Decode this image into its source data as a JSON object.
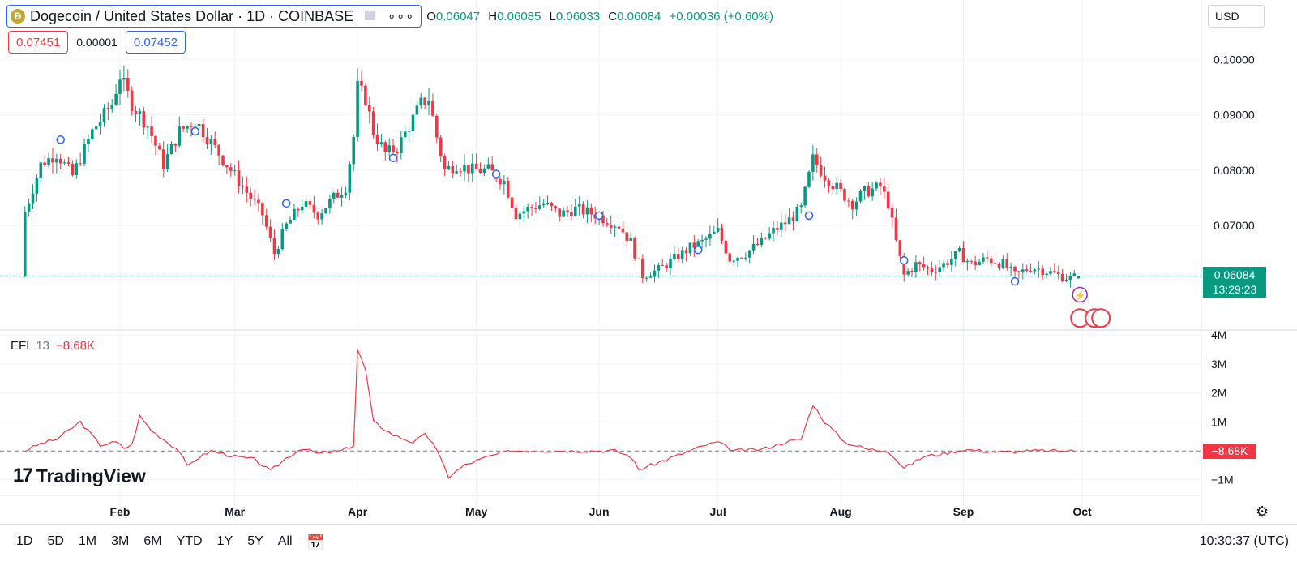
{
  "header": {
    "coin_letter": "Đ",
    "symbol_title": "Dogecoin / United States Dollar · 1D · COINBASE",
    "more_label": "∘∘∘",
    "ohlc": {
      "o_label": "O",
      "o": "0.06047",
      "h_label": "H",
      "h": "0.06085",
      "l_label": "L",
      "l": "0.06033",
      "c_label": "C",
      "c": "0.06084",
      "change": "+0.00036 (+0.60%)"
    },
    "sell_price": "0.07451",
    "spread": "0.00001",
    "buy_price": "0.07452",
    "currency": "USD"
  },
  "price_scale": {
    "last_price": "0.06084",
    "countdown": "13:29:23",
    "last_tag_color": "#089981"
  },
  "efi_pane": {
    "name": "EFI",
    "period": "13",
    "value": "−8.68K",
    "tag_value": "−8.68K",
    "line_color": "#f23645"
  },
  "branding": {
    "logo_mark": "17",
    "logo_text": "TradingView"
  },
  "toolbar": {
    "ranges": [
      "1D",
      "5D",
      "1M",
      "3M",
      "6M",
      "YTD",
      "1Y",
      "5Y",
      "All"
    ],
    "calendar_icon": "calendar-icon",
    "clock": "10:30:37 (UTC)",
    "settings_icon": "gear-icon"
  },
  "colors": {
    "up": "#089981",
    "down": "#f23645",
    "grid": "#f0f3fa"
  },
  "chart_data": [
    {
      "type": "candlestick",
      "title": "Dogecoin / United States Dollar · 1D · COINBASE",
      "x_ticks": [
        "Feb",
        "Mar",
        "Apr",
        "May",
        "Jun",
        "Jul",
        "Aug",
        "Sep",
        "Oct"
      ],
      "y_ticks": [
        "0.07000",
        "0.08000",
        "0.09000",
        "0.10000"
      ],
      "ylim": [
        0.054,
        0.104
      ],
      "grid": true,
      "anchor_closes": [
        [
          "2024-01-08",
          0.0725
        ],
        [
          "2024-01-12",
          0.081
        ],
        [
          "2024-01-16",
          0.083
        ],
        [
          "2024-01-20",
          0.079
        ],
        [
          "2024-01-25",
          0.087
        ],
        [
          "2024-01-30",
          0.092
        ],
        [
          "2024-02-01",
          0.097
        ],
        [
          "2024-02-04",
          0.092
        ],
        [
          "2024-02-08",
          0.088
        ],
        [
          "2024-02-12",
          0.081
        ],
        [
          "2024-02-16",
          0.087
        ],
        [
          "2024-02-20",
          0.089
        ],
        [
          "2024-02-24",
          0.085
        ],
        [
          "2024-02-28",
          0.081
        ],
        [
          "2024-03-04",
          0.076
        ],
        [
          "2024-03-08",
          0.072
        ],
        [
          "2024-03-11",
          0.065
        ],
        [
          "2024-03-14",
          0.07
        ],
        [
          "2024-03-18",
          0.074
        ],
        [
          "2024-03-22",
          0.072
        ],
        [
          "2024-03-26",
          0.075
        ],
        [
          "2024-03-29",
          0.077
        ],
        [
          "2024-03-31",
          0.086
        ],
        [
          "2024-04-01",
          0.095
        ],
        [
          "2024-04-03",
          0.093
        ],
        [
          "2024-04-05",
          0.087
        ],
        [
          "2024-04-08",
          0.083
        ],
        [
          "2024-04-11",
          0.084
        ],
        [
          "2024-04-14",
          0.088
        ],
        [
          "2024-04-17",
          0.092
        ],
        [
          "2024-04-19",
          0.093
        ],
        [
          "2024-04-21",
          0.086
        ],
        [
          "2024-04-23",
          0.08
        ],
        [
          "2024-04-26",
          0.081
        ],
        [
          "2024-04-30",
          0.08
        ],
        [
          "2024-05-04",
          0.08
        ],
        [
          "2024-05-08",
          0.078
        ],
        [
          "2024-05-11",
          0.072
        ],
        [
          "2024-05-14",
          0.073
        ],
        [
          "2024-05-18",
          0.074
        ],
        [
          "2024-05-22",
          0.072
        ],
        [
          "2024-05-26",
          0.073
        ],
        [
          "2024-05-31",
          0.072
        ],
        [
          "2024-06-03",
          0.071
        ],
        [
          "2024-06-06",
          0.07
        ],
        [
          "2024-06-09",
          0.067
        ],
        [
          "2024-06-12",
          0.061
        ],
        [
          "2024-06-16",
          0.062
        ],
        [
          "2024-06-20",
          0.064
        ],
        [
          "2024-06-24",
          0.066
        ],
        [
          "2024-06-27",
          0.067
        ],
        [
          "2024-07-01",
          0.069
        ],
        [
          "2024-07-04",
          0.064
        ],
        [
          "2024-07-08",
          0.065
        ],
        [
          "2024-07-12",
          0.067
        ],
        [
          "2024-07-15",
          0.069
        ],
        [
          "2024-07-19",
          0.071
        ],
        [
          "2024-07-22",
          0.073
        ],
        [
          "2024-07-25",
          0.082
        ],
        [
          "2024-07-28",
          0.079
        ],
        [
          "2024-08-01",
          0.076
        ],
        [
          "2024-08-04",
          0.074
        ],
        [
          "2024-08-07",
          0.076
        ],
        [
          "2024-08-11",
          0.077
        ],
        [
          "2024-08-13",
          0.074
        ],
        [
          "2024-08-15",
          0.067
        ],
        [
          "2024-08-17",
          0.061
        ],
        [
          "2024-08-20",
          0.063
        ],
        [
          "2024-08-24",
          0.062
        ],
        [
          "2024-08-27",
          0.063
        ],
        [
          "2024-08-31",
          0.065
        ],
        [
          "2024-09-03",
          0.063
        ],
        [
          "2024-09-07",
          0.064
        ],
        [
          "2024-09-11",
          0.063
        ],
        [
          "2024-09-14",
          0.061
        ],
        [
          "2024-09-18",
          0.0625
        ],
        [
          "2024-09-21",
          0.062
        ],
        [
          "2024-09-25",
          0.061
        ],
        [
          "2024-09-28",
          0.0605
        ],
        [
          "2024-09-30",
          0.0608
        ]
      ],
      "last": {
        "open": 0.06047,
        "high": 0.06085,
        "low": 0.06033,
        "close": 0.06084,
        "change": 0.00036,
        "change_pct": 0.6
      },
      "events": [
        [
          "2024-01-17",
          0.0855
        ],
        [
          "2024-02-20",
          0.087
        ],
        [
          "2024-03-14",
          0.074
        ],
        [
          "2024-04-10",
          0.0822
        ],
        [
          "2024-05-06",
          0.0793
        ],
        [
          "2024-06-01",
          0.0718
        ],
        [
          "2024-06-26",
          0.0656
        ],
        [
          "2024-07-24",
          0.0718
        ],
        [
          "2024-08-17",
          0.0637
        ],
        [
          "2024-09-14",
          0.0599
        ]
      ]
    },
    {
      "type": "line",
      "title": "EFI 13",
      "y_ticks": [
        "4M",
        "3M",
        "2M",
        "1M",
        "−1M"
      ],
      "ylim": [
        -1.3,
        4.1
      ],
      "baseline": -0.00868,
      "anchor_values": [
        [
          "2024-01-08",
          0.0
        ],
        [
          "2024-01-12",
          0.25
        ],
        [
          "2024-01-16",
          0.4
        ],
        [
          "2024-01-22",
          1.0
        ],
        [
          "2024-01-27",
          0.2
        ],
        [
          "2024-01-31",
          0.3
        ],
        [
          "2024-02-02",
          0.1
        ],
        [
          "2024-02-04",
          0.2
        ],
        [
          "2024-02-06",
          1.2
        ],
        [
          "2024-02-09",
          0.7
        ],
        [
          "2024-02-13",
          0.3
        ],
        [
          "2024-02-16",
          0.0
        ],
        [
          "2024-02-18",
          -0.55
        ],
        [
          "2024-02-20",
          -0.3
        ],
        [
          "2024-02-24",
          0.0
        ],
        [
          "2024-03-01",
          -0.2
        ],
        [
          "2024-03-06",
          -0.3
        ],
        [
          "2024-03-10",
          -0.7
        ],
        [
          "2024-03-14",
          -0.25
        ],
        [
          "2024-03-18",
          0.1
        ],
        [
          "2024-03-22",
          -0.1
        ],
        [
          "2024-03-28",
          0.0
        ],
        [
          "2024-03-31",
          0.2
        ],
        [
          "2024-04-01",
          3.5
        ],
        [
          "2024-04-03",
          2.8
        ],
        [
          "2024-04-05",
          1.0
        ],
        [
          "2024-04-10",
          0.55
        ],
        [
          "2024-04-15",
          0.3
        ],
        [
          "2024-04-18",
          0.55
        ],
        [
          "2024-04-20",
          0.3
        ],
        [
          "2024-04-24",
          -0.9
        ],
        [
          "2024-04-28",
          -0.5
        ],
        [
          "2024-05-04",
          -0.2
        ],
        [
          "2024-05-10",
          0.0
        ],
        [
          "2024-05-20",
          0.0
        ],
        [
          "2024-05-31",
          0.0
        ],
        [
          "2024-06-05",
          0.0
        ],
        [
          "2024-06-09",
          -0.2
        ],
        [
          "2024-06-11",
          -0.65
        ],
        [
          "2024-06-16",
          -0.4
        ],
        [
          "2024-06-22",
          -0.1
        ],
        [
          "2024-06-28",
          0.2
        ],
        [
          "2024-07-01",
          0.3
        ],
        [
          "2024-07-05",
          0.0
        ],
        [
          "2024-07-12",
          0.05
        ],
        [
          "2024-07-18",
          0.3
        ],
        [
          "2024-07-22",
          0.4
        ],
        [
          "2024-07-25",
          1.6
        ],
        [
          "2024-07-28",
          1.0
        ],
        [
          "2024-08-02",
          0.3
        ],
        [
          "2024-08-08",
          0.05
        ],
        [
          "2024-08-13",
          0.0
        ],
        [
          "2024-08-17",
          -0.6
        ],
        [
          "2024-08-22",
          -0.2
        ],
        [
          "2024-08-29",
          -0.05
        ],
        [
          "2024-09-01",
          0.05
        ],
        [
          "2024-09-10",
          -0.05
        ],
        [
          "2024-09-20",
          0.0
        ],
        [
          "2024-09-29",
          -0.00868
        ]
      ]
    }
  ]
}
